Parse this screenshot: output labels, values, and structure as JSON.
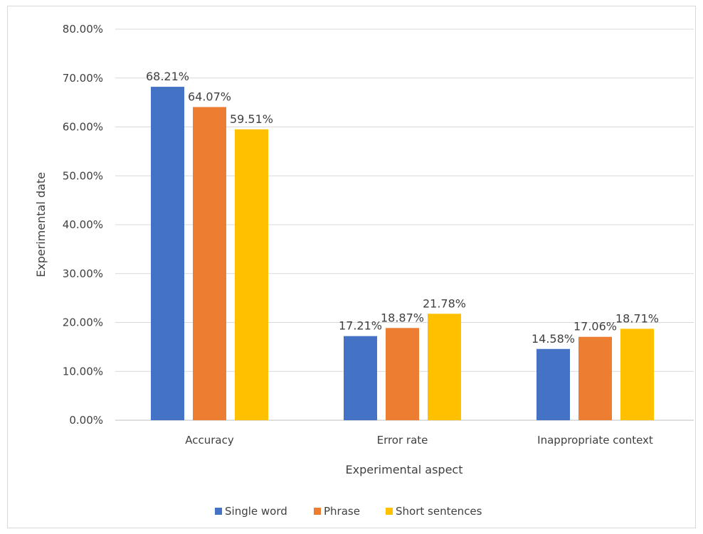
{
  "chart_data": {
    "type": "bar",
    "title": "",
    "xlabel": "Experimental aspect",
    "ylabel": "Experimental date",
    "categories": [
      "Accuracy",
      "Error rate",
      "Inappropriate context"
    ],
    "series": [
      {
        "name": "Single word",
        "color": "#4472c4",
        "values": [
          68.21,
          17.21,
          14.58
        ]
      },
      {
        "name": "Phrase",
        "color": "#ed7d31",
        "values": [
          64.07,
          18.87,
          17.06
        ]
      },
      {
        "name": "Short sentences",
        "color": "#ffc000",
        "values": [
          59.51,
          21.78,
          18.71
        ]
      }
    ],
    "data_labels": [
      [
        "68.21%",
        "17.21%",
        "14.58%"
      ],
      [
        "64.07%",
        "18.87%",
        "17.06%"
      ],
      [
        "59.51%",
        "21.78%",
        "18.71%"
      ]
    ],
    "ylim": [
      0,
      80
    ],
    "yticks": [
      0,
      10,
      20,
      30,
      40,
      50,
      60,
      70,
      80
    ],
    "ytick_labels": [
      "0.00%",
      "10.00%",
      "20.00%",
      "30.00%",
      "40.00%",
      "50.00%",
      "60.00%",
      "70.00%",
      "80.00%"
    ],
    "grid": true,
    "legend_position": "bottom"
  }
}
